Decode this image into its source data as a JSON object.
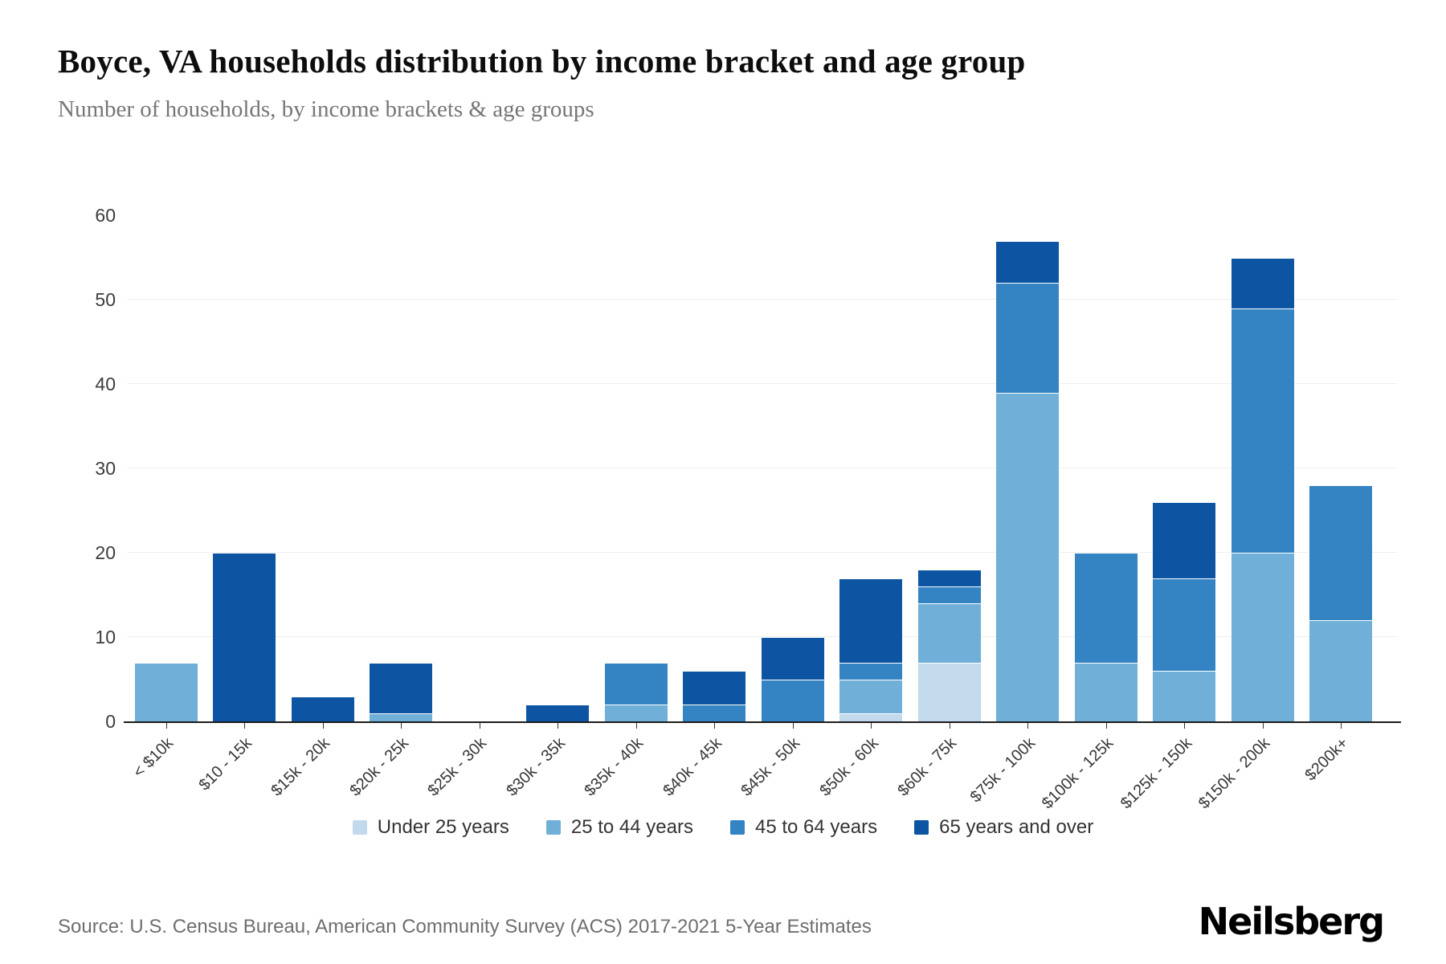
{
  "header": {
    "title": "Boyce, VA households distribution by income bracket and age group",
    "subtitle": "Number of households, by income brackets & age groups"
  },
  "chart_data": {
    "type": "bar",
    "stacked": true,
    "title": "Boyce, VA households distribution by income bracket and age group",
    "xlabel": "",
    "ylabel": "",
    "ylim": [
      0,
      60
    ],
    "yticks": [
      0,
      10,
      20,
      30,
      40,
      50,
      60
    ],
    "grid": "horizontal",
    "legend_position": "bottom",
    "categories": [
      "< $10k",
      "$10 - 15k",
      "$15k - 20k",
      "$20k - 25k",
      "$25k - 30k",
      "$30k - 35k",
      "$35k - 40k",
      "$40k - 45k",
      "$45k - 50k",
      "$50k - 60k",
      "$60k - 75k",
      "$75k - 100k",
      "$100k - 125k",
      "$125k - 150k",
      "$150k - 200k",
      "$200k+"
    ],
    "series": [
      {
        "name": "Under 25 years",
        "color": "#c3d9ec",
        "values": [
          0,
          0,
          0,
          0,
          0,
          0,
          0,
          0,
          0,
          1,
          7,
          0,
          0,
          0,
          0,
          0
        ]
      },
      {
        "name": "25 to 44 years",
        "color": "#6fafd8",
        "values": [
          7,
          0,
          0,
          1,
          0,
          0,
          2,
          0,
          0,
          4,
          7,
          39,
          7,
          6,
          20,
          12
        ]
      },
      {
        "name": "45 to 64 years",
        "color": "#3483c2",
        "values": [
          0,
          0,
          0,
          0,
          0,
          0,
          5,
          2,
          5,
          2,
          2,
          13,
          13,
          11,
          29,
          16
        ]
      },
      {
        "name": "65 years and over",
        "color": "#0d55a3",
        "values": [
          0,
          20,
          3,
          6,
          0,
          2,
          0,
          4,
          5,
          10,
          2,
          5,
          0,
          9,
          6,
          0
        ]
      }
    ],
    "totals": [
      7,
      20,
      3,
      7,
      0,
      2,
      7,
      6,
      10,
      17,
      18,
      57,
      20,
      26,
      55,
      28
    ]
  },
  "footer": {
    "source": "Source: U.S. Census Bureau, American Community Survey (ACS) 2017-2021 5-Year Estimates",
    "brand": "Neilsberg"
  }
}
